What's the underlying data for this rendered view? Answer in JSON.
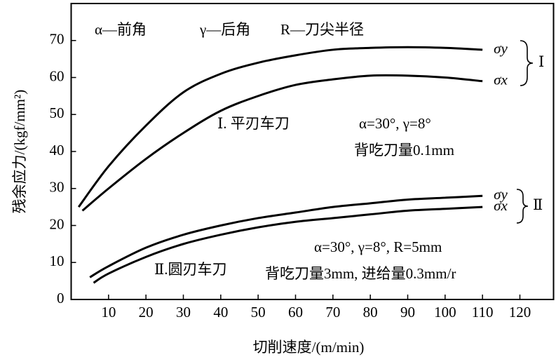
{
  "chart_data": {
    "type": "line",
    "xlabel": "切削速度/(m/min)",
    "ylabel": "残余应力/(kgf/mm²)",
    "xlim": [
      0,
      129
    ],
    "ylim": [
      0,
      80
    ],
    "xticks": [
      10,
      20,
      30,
      40,
      50,
      60,
      70,
      80,
      90,
      100,
      110,
      120
    ],
    "yticks": [
      0,
      10,
      20,
      30,
      40,
      50,
      60,
      70
    ],
    "annotations": [
      "α—前角",
      "γ—后角",
      "R—刀尖半径",
      "Ⅰ. 平刃车刀",
      "α=30°, γ=8°",
      "背吃刀量0.1mm",
      "α=30°, γ=8°, R=5mm",
      "Ⅱ.圆刃车刀",
      "背吃刀量3mm, 进给量0.3mm/r",
      "Ⅰ",
      "Ⅱ"
    ],
    "series": [
      {
        "name": "σy",
        "color": "#000000",
        "x": [
          2,
          10,
          20,
          30,
          40,
          50,
          60,
          70,
          80,
          90,
          100,
          110
        ],
        "values": [
          25,
          36,
          47,
          56,
          61,
          64,
          66,
          67.5,
          68,
          68.2,
          68,
          67.5
        ]
      },
      {
        "name": "σx",
        "color": "#000000",
        "x": [
          3,
          10,
          20,
          30,
          40,
          50,
          60,
          70,
          80,
          90,
          100,
          110
        ],
        "values": [
          24,
          30,
          38,
          45,
          51,
          55,
          58,
          59.5,
          60.5,
          60.5,
          60,
          59
        ]
      },
      {
        "name": "σy",
        "color": "#000000",
        "x": [
          5,
          10,
          20,
          30,
          40,
          50,
          60,
          70,
          80,
          90,
          100,
          110
        ],
        "values": [
          6,
          9,
          14,
          17.5,
          20,
          22,
          23.5,
          25,
          26,
          27,
          27.5,
          28
        ]
      },
      {
        "name": "σx",
        "color": "#000000",
        "x": [
          6,
          10,
          20,
          30,
          40,
          50,
          60,
          70,
          80,
          90,
          100,
          110
        ],
        "values": [
          4.5,
          7,
          11.5,
          15,
          17.5,
          19.5,
          21,
          22,
          23,
          24,
          24.5,
          25
        ]
      }
    ]
  }
}
